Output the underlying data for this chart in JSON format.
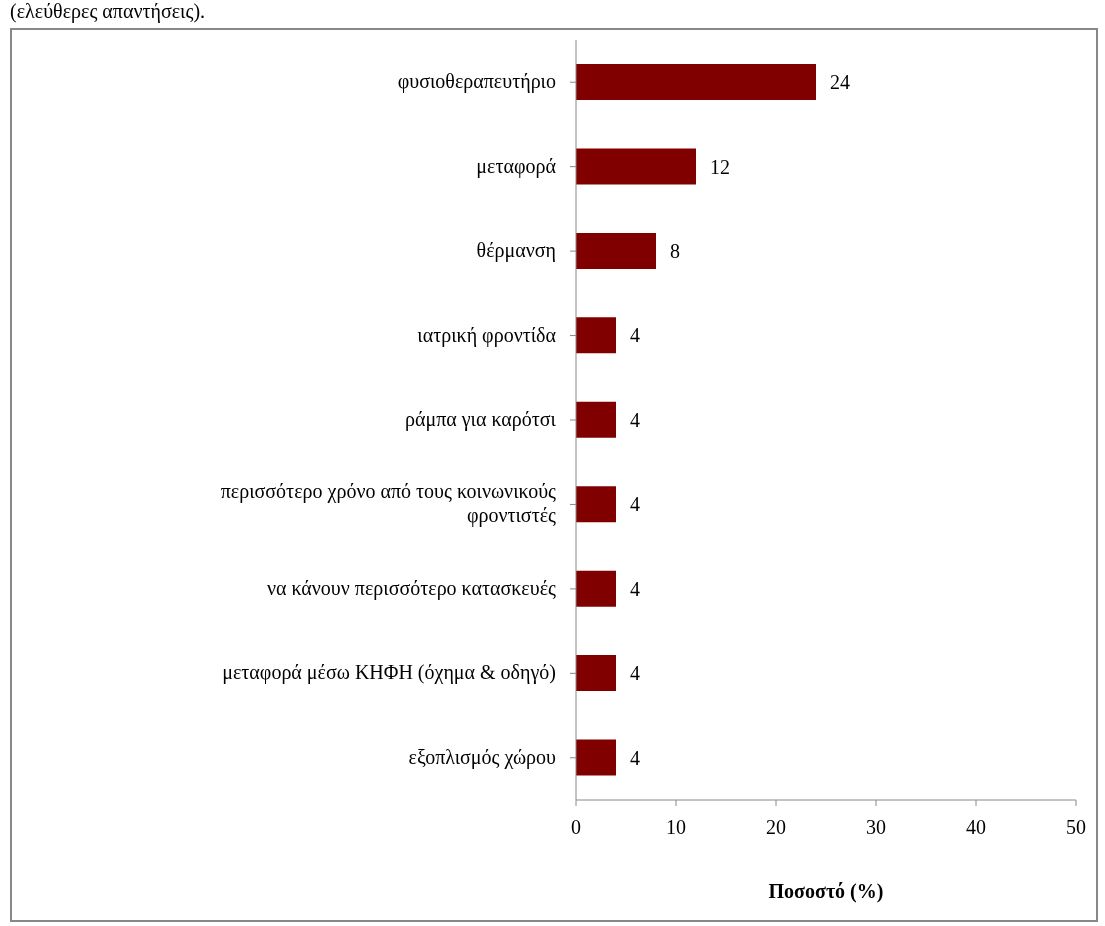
{
  "chart_data": {
    "type": "bar",
    "orientation": "horizontal",
    "annotations": [
      "(ελεύθερες απαντήσεις)."
    ],
    "categories": [
      "φυσιοθεραπευτήριο",
      "μεταφορά",
      "θέρμανση",
      "ιατρική φροντίδα",
      "ράμπα για καρότσι",
      "περισσότερο χρόνο από τους κοινωνικούς φροντιστές",
      "να κάνουν περισσότερο κατασκευές",
      "μεταφορά μέσω ΚΗΦΗ (όχημα & οδηγό)",
      "εξοπλισμός χώρου"
    ],
    "values": [
      24,
      12,
      8,
      4,
      4,
      4,
      4,
      4,
      4
    ],
    "color": "#800000",
    "data_labels": true,
    "xlim": [
      0,
      50
    ],
    "xticks": [
      0,
      10,
      20,
      30,
      40,
      50
    ],
    "xlabel": "Ποσοστό (%)",
    "grid": false,
    "legend": false
  }
}
